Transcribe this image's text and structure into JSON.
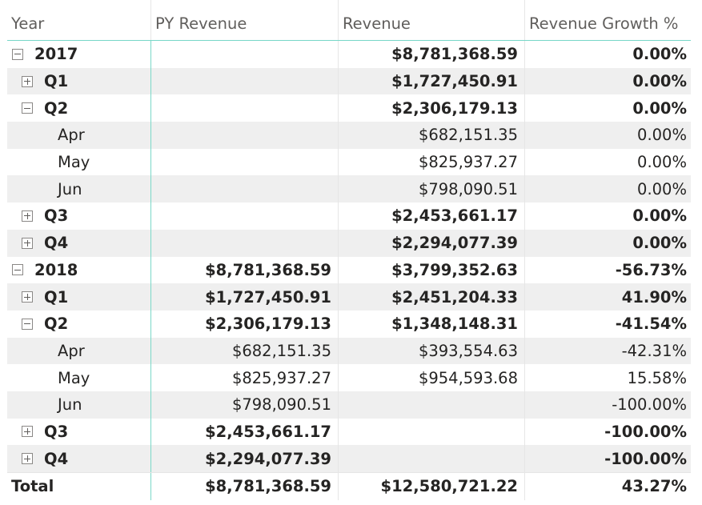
{
  "headers": {
    "year": "Year",
    "py_revenue": "PY Revenue",
    "revenue": "Revenue",
    "growth": "Revenue Growth %"
  },
  "rows": [
    {
      "label": "2017",
      "py": "",
      "rev": "$8,781,368.59",
      "growth": "0.00%",
      "level": 0,
      "toggle": "collapse",
      "bold": true
    },
    {
      "label": "Q1",
      "py": "",
      "rev": "$1,727,450.91",
      "growth": "0.00%",
      "level": 1,
      "toggle": "expand",
      "bold": true
    },
    {
      "label": "Q2",
      "py": "",
      "rev": "$2,306,179.13",
      "growth": "0.00%",
      "level": 1,
      "toggle": "collapse",
      "bold": true
    },
    {
      "label": "Apr",
      "py": "",
      "rev": "$682,151.35",
      "growth": "0.00%",
      "level": 2,
      "toggle": "",
      "bold": false
    },
    {
      "label": "May",
      "py": "",
      "rev": "$825,937.27",
      "growth": "0.00%",
      "level": 2,
      "toggle": "",
      "bold": false
    },
    {
      "label": "Jun",
      "py": "",
      "rev": "$798,090.51",
      "growth": "0.00%",
      "level": 2,
      "toggle": "",
      "bold": false
    },
    {
      "label": "Q3",
      "py": "",
      "rev": "$2,453,661.17",
      "growth": "0.00%",
      "level": 1,
      "toggle": "expand",
      "bold": true
    },
    {
      "label": "Q4",
      "py": "",
      "rev": "$2,294,077.39",
      "growth": "0.00%",
      "level": 1,
      "toggle": "expand",
      "bold": true
    },
    {
      "label": "2018",
      "py": "$8,781,368.59",
      "rev": "$3,799,352.63",
      "growth": "-56.73%",
      "level": 0,
      "toggle": "collapse",
      "bold": true
    },
    {
      "label": "Q1",
      "py": "$1,727,450.91",
      "rev": "$2,451,204.33",
      "growth": "41.90%",
      "level": 1,
      "toggle": "expand",
      "bold": true
    },
    {
      "label": "Q2",
      "py": "$2,306,179.13",
      "rev": "$1,348,148.31",
      "growth": "-41.54%",
      "level": 1,
      "toggle": "collapse",
      "bold": true
    },
    {
      "label": "Apr",
      "py": "$682,151.35",
      "rev": "$393,554.63",
      "growth": "-42.31%",
      "level": 2,
      "toggle": "",
      "bold": false
    },
    {
      "label": "May",
      "py": "$825,937.27",
      "rev": "$954,593.68",
      "growth": "15.58%",
      "level": 2,
      "toggle": "",
      "bold": false
    },
    {
      "label": "Jun",
      "py": "$798,090.51",
      "rev": "",
      "growth": "-100.00%",
      "level": 2,
      "toggle": "",
      "bold": false
    },
    {
      "label": "Q3",
      "py": "$2,453,661.17",
      "rev": "",
      "growth": "-100.00%",
      "level": 1,
      "toggle": "expand",
      "bold": true
    },
    {
      "label": "Q4",
      "py": "$2,294,077.39",
      "rev": "",
      "growth": "-100.00%",
      "level": 1,
      "toggle": "expand",
      "bold": true
    }
  ],
  "total": {
    "label": "Total",
    "py": "$8,781,368.59",
    "rev": "$12,580,721.22",
    "growth": "43.27%"
  },
  "colors": {
    "header_border": "#77d7c8",
    "alt_row": "#efefef",
    "text": "#252423"
  },
  "icons": {
    "collapse": "minus-box-icon",
    "expand": "plus-box-icon"
  }
}
